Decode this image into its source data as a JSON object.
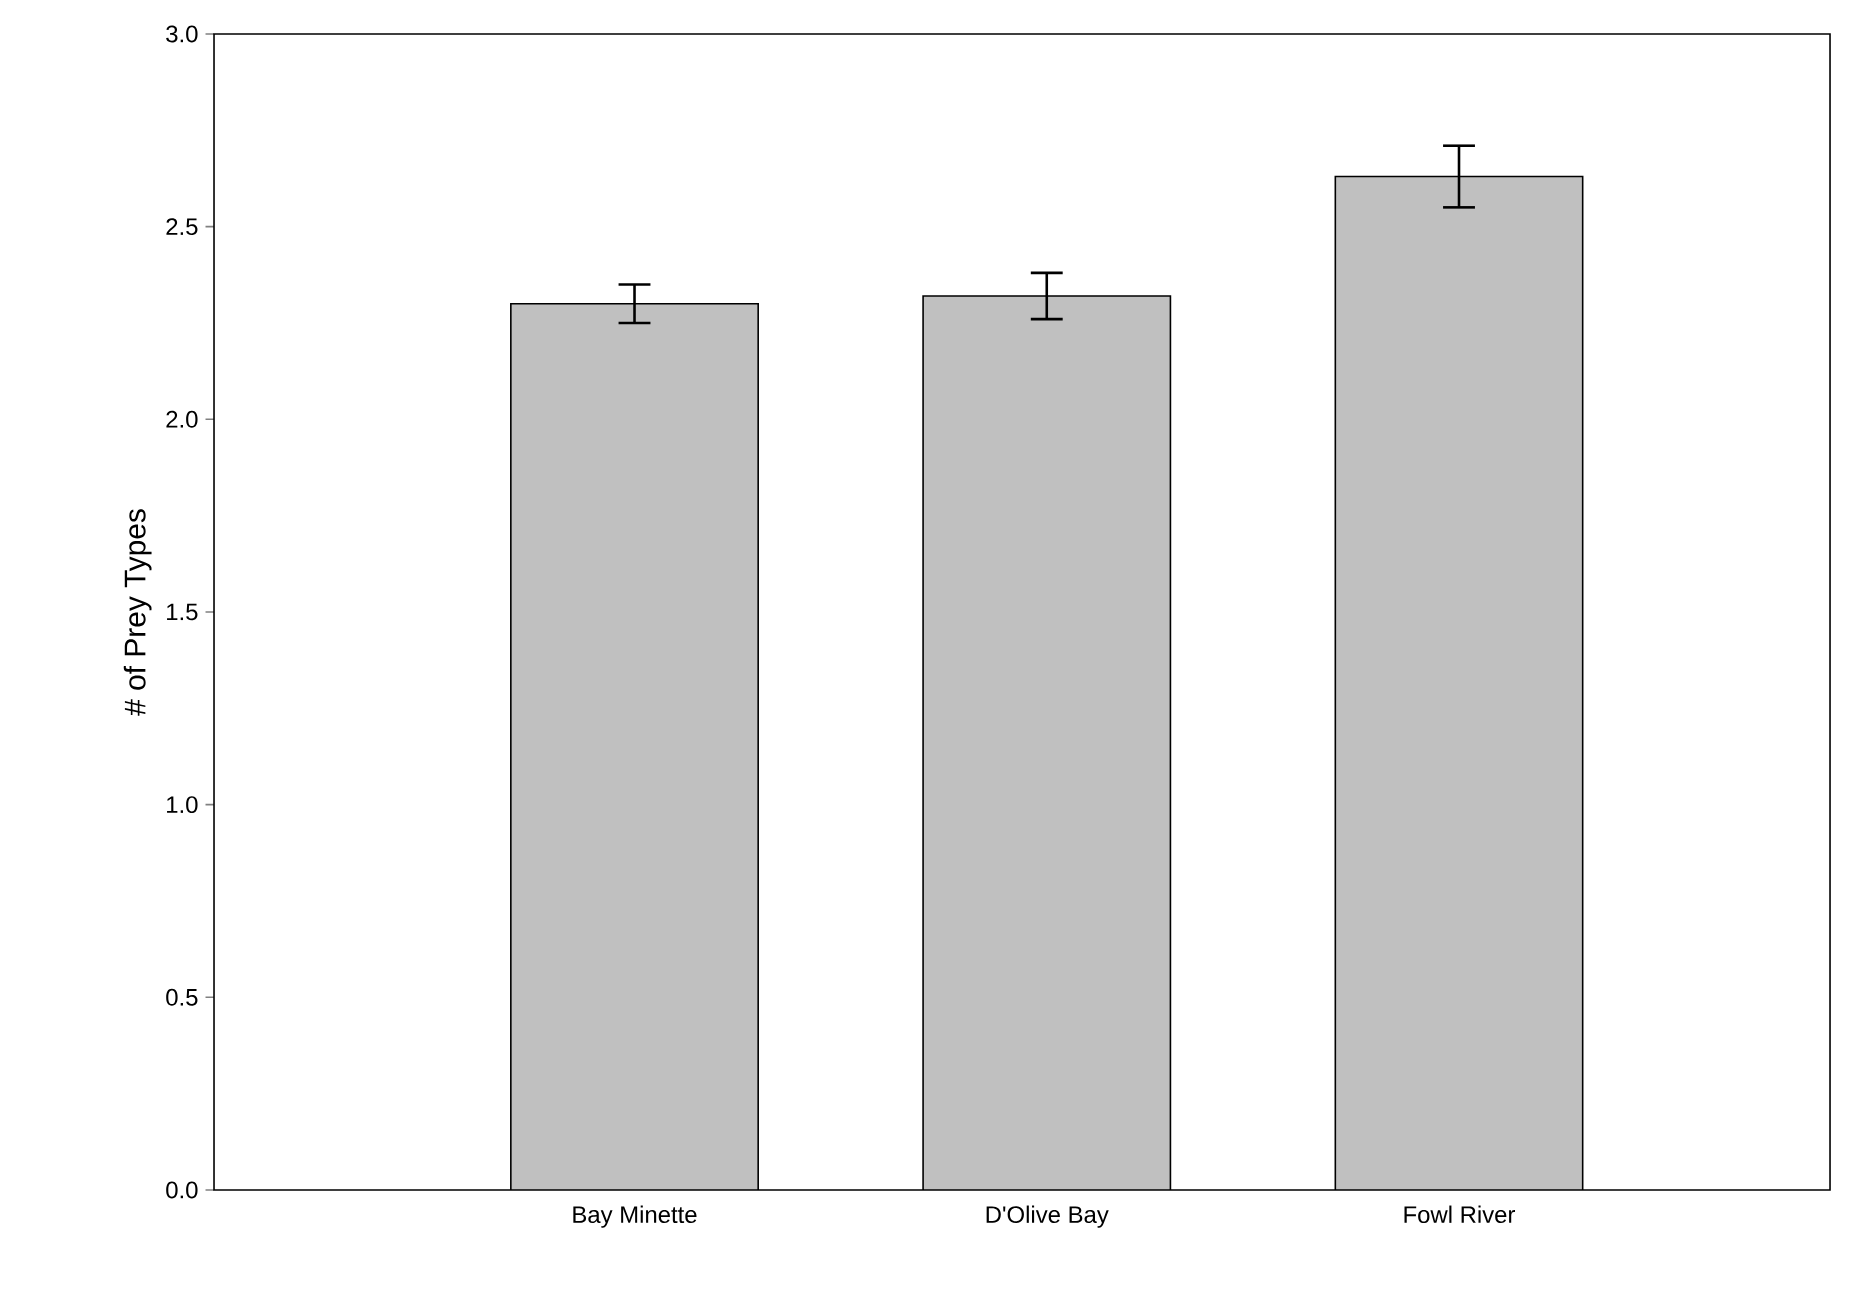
{
  "chart_data": {
    "type": "bar",
    "ylabel": "# of Prey Types",
    "categories": [
      "Bay Minette",
      "D'Olive Bay",
      "Fowl River"
    ],
    "values": [
      2.3,
      2.32,
      2.63
    ],
    "errors": [
      0.05,
      0.06,
      0.08
    ],
    "color": "#c0c0c0",
    "ylim": [
      0,
      3.0
    ],
    "yticks": [
      {
        "value": 0,
        "label": "0.0"
      },
      {
        "value": 0.5,
        "label": "0.5"
      },
      {
        "value": 1.0,
        "label": "1.0"
      },
      {
        "value": 1.5,
        "label": "1.5"
      },
      {
        "value": 2.0,
        "label": "2.0"
      },
      {
        "value": 2.5,
        "label": "2.5"
      },
      {
        "value": 3.0,
        "label": "3.0"
      }
    ],
    "grid": false
  }
}
